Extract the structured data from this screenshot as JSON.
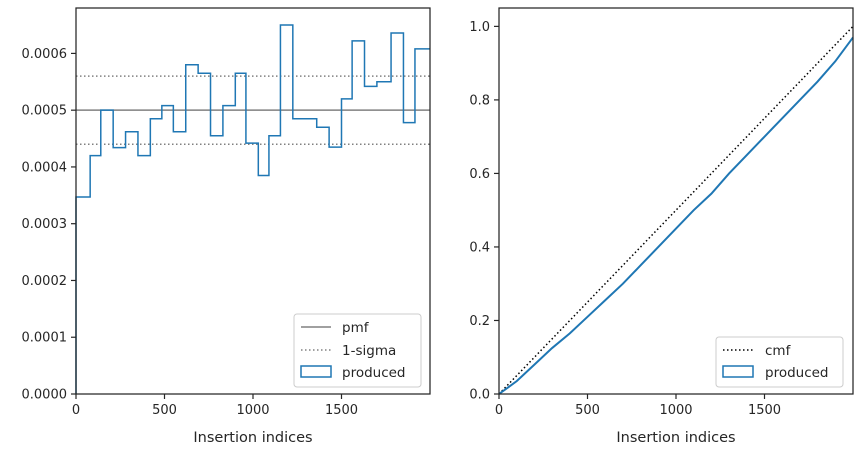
{
  "colors": {
    "produced": "#1f77b4",
    "pmf": "#808080",
    "sigma": "#808080",
    "cmf": "#000000",
    "axes": "#262626"
  },
  "chart_data": [
    {
      "type": "step",
      "xlabel": "Insertion indices",
      "ylabel": "",
      "xlim": [
        0,
        2000
      ],
      "ylim": [
        0,
        0.00068
      ],
      "xticks": [
        0,
        500,
        1000,
        1500
      ],
      "xtick_labels": [
        "0",
        "500",
        "1000",
        "1500"
      ],
      "yticks": [
        0,
        0.0001,
        0.0002,
        0.0003,
        0.0004,
        0.0005,
        0.0006
      ],
      "ytick_labels": [
        "0.0000",
        "0.0001",
        "0.0002",
        "0.0003",
        "0.0004",
        "0.0005",
        "0.0006"
      ],
      "pmf": 0.0005,
      "sigma_band": [
        0.00044,
        0.00056
      ],
      "produced": {
        "bin_edges": [
          0,
          80,
          140,
          210,
          280,
          350,
          420,
          485,
          550,
          620,
          690,
          760,
          830,
          900,
          960,
          1030,
          1090,
          1155,
          1225,
          1290,
          1360,
          1430,
          1500,
          1560,
          1630,
          1700,
          1780,
          1850,
          1915,
          1980,
          2000
        ],
        "heights": [
          0.000347,
          0.00042,
          0.0005,
          0.000434,
          0.000462,
          0.00042,
          0.000485,
          0.000508,
          0.000462,
          0.00058,
          0.000565,
          0.000455,
          0.000508,
          0.000565,
          0.000442,
          0.000385,
          0.000455,
          0.00065,
          0.000485,
          0.000485,
          0.00047,
          0.000435,
          0.00052,
          0.000622,
          0.000542,
          0.00055,
          0.000636,
          0.000478,
          0.000608,
          0.000608
        ]
      },
      "legend": {
        "position": "lower right",
        "entries": [
          "pmf",
          "1-sigma",
          "produced"
        ]
      }
    },
    {
      "type": "line",
      "xlabel": "Insertion indices",
      "ylabel": "",
      "xlim": [
        0,
        2000
      ],
      "ylim": [
        0,
        1.05
      ],
      "xticks": [
        0,
        500,
        1000,
        1500
      ],
      "xtick_labels": [
        "0",
        "500",
        "1000",
        "1500"
      ],
      "yticks": [
        0,
        0.2,
        0.4,
        0.6,
        0.8,
        1.0
      ],
      "ytick_labels": [
        "0.0",
        "0.2",
        "0.4",
        "0.6",
        "0.8",
        "1.0"
      ],
      "cmf": {
        "x": [
          0,
          2000
        ],
        "y": [
          0,
          1.0
        ]
      },
      "produced": {
        "x": [
          0,
          100,
          200,
          300,
          400,
          500,
          600,
          700,
          800,
          900,
          1000,
          1100,
          1200,
          1300,
          1400,
          1500,
          1600,
          1700,
          1800,
          1900,
          2000
        ],
        "y": [
          0,
          0.035,
          0.08,
          0.125,
          0.165,
          0.21,
          0.255,
          0.3,
          0.35,
          0.4,
          0.45,
          0.5,
          0.545,
          0.6,
          0.65,
          0.7,
          0.75,
          0.8,
          0.85,
          0.905,
          0.97
        ]
      },
      "legend": {
        "position": "lower right",
        "entries": [
          "cmf",
          "produced"
        ]
      }
    }
  ]
}
